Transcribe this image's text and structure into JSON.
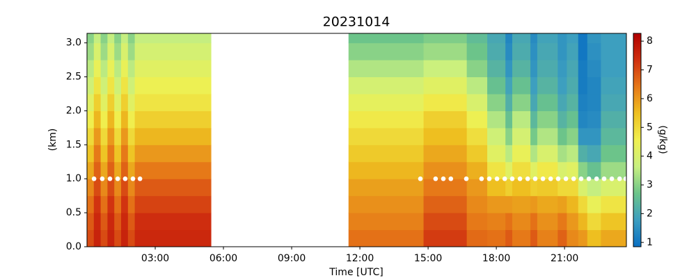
{
  "chart_data": {
    "type": "heatmap",
    "title": "20231014",
    "x_label": "Time [UTC]",
    "y_label": "(km)",
    "colorbar_label": "(g/kg)",
    "xlim": [
      0,
      23.72
    ],
    "ylim": [
      0,
      3.14
    ],
    "xticks": [
      {
        "value": 3,
        "label": "03:00"
      },
      {
        "value": 6,
        "label": "06:00"
      },
      {
        "value": 9,
        "label": "09:00"
      },
      {
        "value": 12,
        "label": "12:00"
      },
      {
        "value": 15,
        "label": "15:00"
      },
      {
        "value": 18,
        "label": "18:00"
      },
      {
        "value": 21,
        "label": "21:00"
      }
    ],
    "yticks": [
      {
        "value": 0,
        "label": "0.0"
      },
      {
        "value": 0.5,
        "label": "0.5"
      },
      {
        "value": 1,
        "label": "1.0"
      },
      {
        "value": 1.5,
        "label": "1.5"
      },
      {
        "value": 2,
        "label": "2.0"
      },
      {
        "value": 2.5,
        "label": "2.5"
      },
      {
        "value": 3,
        "label": "3.0"
      }
    ],
    "clim": [
      0.85,
      8.27
    ],
    "cticks": [
      1,
      2,
      3,
      4,
      5,
      6,
      7,
      8
    ],
    "colormap": [
      "#0a6fc2",
      "#3c9ec0",
      "#6cc48a",
      "#c8f080",
      "#f0f050",
      "#eec020",
      "#e67818",
      "#d03010",
      "#b00000"
    ],
    "x_edges": [
      0,
      0.3,
      0.6,
      0.9,
      1.2,
      1.5,
      1.8,
      2.1,
      5.45,
      11.5,
      14.8,
      16.7,
      17.6,
      18.4,
      18.7,
      19.5,
      19.8,
      20.7,
      21.1,
      21.6,
      22.0,
      22.6,
      23.72
    ],
    "y_edges": [
      0,
      0.25,
      0.5,
      0.75,
      1.0,
      1.25,
      1.5,
      1.75,
      2.0,
      2.25,
      2.5,
      2.75,
      3.0,
      3.14
    ],
    "z": [
      [
        7.0,
        6.8,
        6.5,
        6.2,
        5.8,
        5.4,
        5.0,
        4.6,
        4.2,
        3.8,
        3.5,
        3.2,
        3.0
      ],
      [
        7.6,
        7.5,
        7.3,
        7.0,
        6.7,
        6.4,
        6.0,
        5.6,
        5.2,
        4.8,
        4.4,
        4.0,
        3.6
      ],
      [
        7.0,
        6.8,
        6.5,
        6.2,
        5.8,
        5.4,
        5.0,
        4.6,
        4.2,
        3.8,
        3.5,
        3.2,
        3.0
      ],
      [
        7.6,
        7.5,
        7.3,
        7.0,
        6.7,
        6.4,
        6.0,
        5.6,
        5.2,
        4.8,
        4.4,
        4.0,
        3.6
      ],
      [
        7.0,
        6.8,
        6.5,
        6.2,
        5.8,
        5.4,
        5.0,
        4.6,
        4.2,
        3.8,
        3.5,
        3.2,
        3.0
      ],
      [
        7.6,
        7.5,
        7.3,
        7.0,
        6.7,
        6.4,
        6.0,
        5.6,
        5.2,
        4.8,
        4.4,
        4.0,
        3.6
      ],
      [
        7.0,
        6.8,
        6.5,
        6.2,
        5.8,
        5.4,
        5.0,
        4.6,
        4.2,
        3.8,
        3.5,
        3.2,
        3.0
      ],
      [
        7.5,
        7.4,
        7.1,
        6.8,
        6.4,
        6.0,
        5.6,
        5.2,
        4.8,
        4.5,
        4.2,
        3.9,
        3.6
      ],
      [
        null,
        null,
        null,
        null,
        null,
        null,
        null,
        null,
        null,
        null,
        null,
        null,
        null
      ],
      [
        6.5,
        6.3,
        6.1,
        5.9,
        5.6,
        5.3,
        5.0,
        4.7,
        4.3,
        3.9,
        3.4,
        3.0,
        2.7
      ],
      [
        7.2,
        7.0,
        6.7,
        6.4,
        6.1,
        5.8,
        5.5,
        5.2,
        4.7,
        4.2,
        3.7,
        3.2,
        2.9
      ],
      [
        6.6,
        6.4,
        6.2,
        6.0,
        5.7,
        5.3,
        4.9,
        4.5,
        4.0,
        3.5,
        3.0,
        2.7,
        2.5
      ],
      [
        6.5,
        6.3,
        6.0,
        5.5,
        4.8,
        4.2,
        3.8,
        3.4,
        3.0,
        2.6,
        2.3,
        2.1,
        2.0
      ],
      [
        6.8,
        6.5,
        6.0,
        5.2,
        4.2,
        3.5,
        3.0,
        2.6,
        2.2,
        1.9,
        1.6,
        1.4,
        1.3
      ],
      [
        6.4,
        6.2,
        5.9,
        5.5,
        4.9,
        4.4,
        3.9,
        3.5,
        3.0,
        2.6,
        2.3,
        2.1,
        2.0
      ],
      [
        6.8,
        6.5,
        6.0,
        5.2,
        4.2,
        3.4,
        2.8,
        2.4,
        2.0,
        1.8,
        1.6,
        1.5,
        1.4
      ],
      [
        6.3,
        6.1,
        5.8,
        5.3,
        4.7,
        4.0,
        3.4,
        3.0,
        2.6,
        2.3,
        2.1,
        2.0,
        1.9
      ],
      [
        6.7,
        6.4,
        5.9,
        5.0,
        4.0,
        3.3,
        2.7,
        2.3,
        2.0,
        1.8,
        1.7,
        1.6,
        1.6
      ],
      [
        6.2,
        6.0,
        5.6,
        5.0,
        4.2,
        3.5,
        3.0,
        2.6,
        2.3,
        2.1,
        2.0,
        1.9,
        1.8
      ],
      [
        6.0,
        5.6,
        5.0,
        4.0,
        3.0,
        2.2,
        1.6,
        1.3,
        1.2,
        1.1,
        1.1,
        1.0,
        1.0
      ],
      [
        5.5,
        5.0,
        4.4,
        3.6,
        2.6,
        2.0,
        1.6,
        1.4,
        1.3,
        1.3,
        1.4,
        1.5,
        1.6
      ],
      [
        5.8,
        5.4,
        4.8,
        4.0,
        3.2,
        2.7,
        2.4,
        2.2,
        2.0,
        1.9,
        1.8,
        1.8,
        1.8
      ]
    ],
    "points": {
      "color": "#ffffff",
      "x": [
        0.31,
        0.67,
        1.01,
        1.35,
        1.68,
        2.02,
        2.33,
        14.66,
        15.33,
        15.67,
        16.0,
        16.68,
        17.35,
        17.69,
        18.03,
        18.37,
        18.7,
        19.04,
        19.38,
        19.71,
        20.05,
        20.39,
        20.72,
        21.06,
        21.4,
        21.73,
        22.07,
        22.41,
        22.74,
        23.08,
        23.42,
        23.69
      ],
      "y": [
        1.0,
        1.0,
        1.0,
        1.0,
        1.0,
        1.0,
        1.0,
        1.0,
        1.0,
        1.0,
        1.0,
        1.0,
        1.0,
        1.0,
        1.0,
        1.0,
        1.0,
        1.0,
        1.0,
        1.0,
        1.0,
        1.0,
        1.0,
        1.0,
        1.0,
        1.0,
        1.0,
        1.0,
        1.0,
        1.0,
        1.0,
        1.0
      ]
    }
  }
}
